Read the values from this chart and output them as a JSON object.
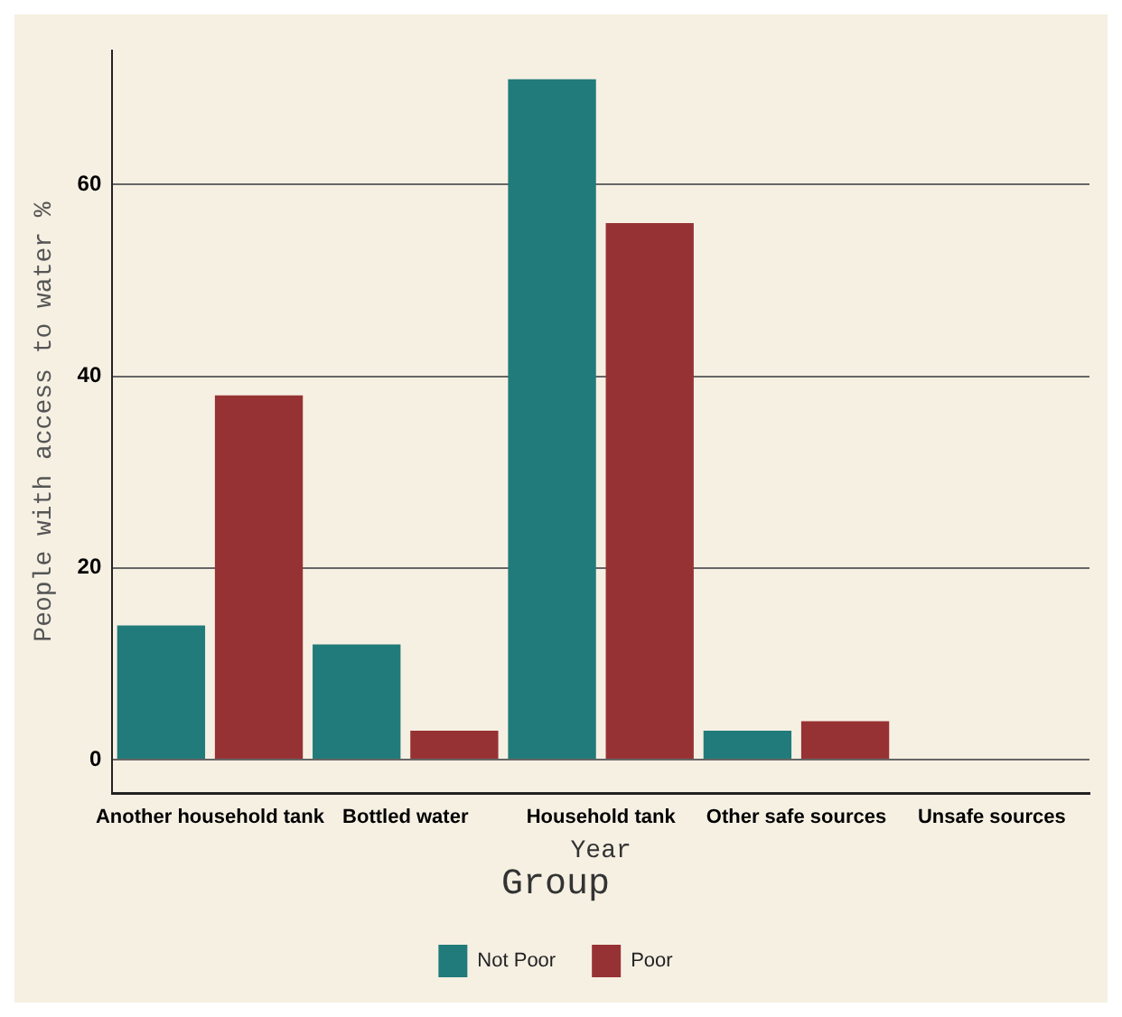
{
  "chart_data": {
    "type": "bar",
    "xlabel": "Year",
    "ylabel": "People with access to water %",
    "legend_title": "Group",
    "categories": [
      "Another household tank",
      "Bottled water",
      "Household tank",
      "Other safe sources",
      "Unsafe sources"
    ],
    "series": [
      {
        "name": "Not Poor",
        "color": "#217b7a",
        "values": [
          14,
          12,
          71,
          3,
          0
        ]
      },
      {
        "name": "Poor",
        "color": "#973234",
        "values": [
          38,
          3,
          56,
          4,
          0
        ]
      }
    ],
    "ylim": [
      -3.5,
      74
    ],
    "yticks": [
      0,
      20,
      40,
      60
    ],
    "grid": "y",
    "legend": "bottom"
  }
}
